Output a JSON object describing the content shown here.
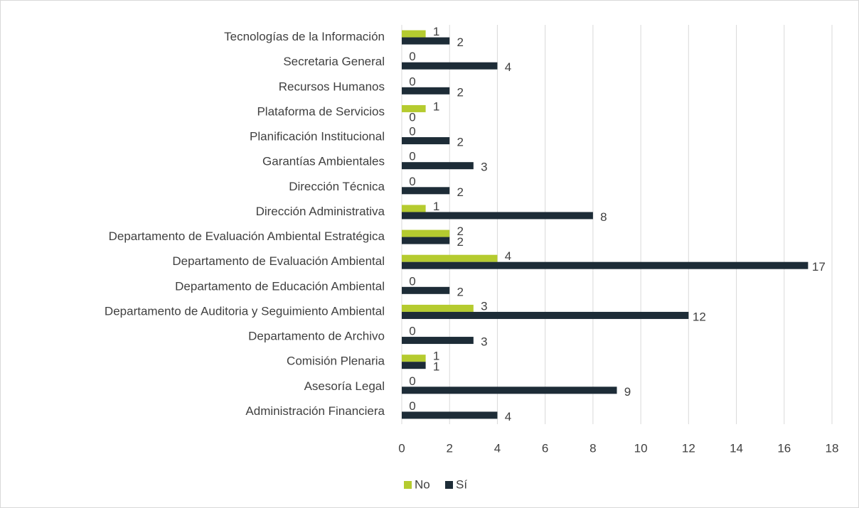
{
  "chart_data": {
    "type": "barh",
    "categories": [
      "Tecnologías de la Información",
      "Secretaria General",
      "Recursos Humanos",
      "Plataforma de Servicios",
      "Planificación Institucional",
      "Garantías Ambientales",
      "Dirección Técnica",
      "Dirección Administrativa",
      "Departamento de Evaluación Ambiental Estratégica",
      "Departamento de Evaluación Ambiental",
      "Departamento de Educación Ambiental",
      "Departamento de Auditoria y Seguimiento Ambiental",
      "Departamento de Archivo",
      "Comisión Plenaria",
      "Asesoría Legal",
      "Administración Financiera"
    ],
    "series": [
      {
        "name": "No",
        "color": "#b5cb2f",
        "values": [
          1,
          0,
          0,
          1,
          0,
          0,
          0,
          1,
          2,
          4,
          0,
          3,
          0,
          1,
          0,
          0
        ]
      },
      {
        "name": "Sí",
        "color": "#1d2c37",
        "values": [
          2,
          4,
          2,
          0,
          2,
          3,
          2,
          8,
          2,
          17,
          2,
          12,
          3,
          1,
          9,
          4
        ]
      }
    ],
    "xlim": [
      0,
      18
    ],
    "xticks": [
      0,
      2,
      4,
      6,
      8,
      10,
      12,
      14,
      16,
      18
    ],
    "grid": true,
    "legend": "bottom"
  }
}
